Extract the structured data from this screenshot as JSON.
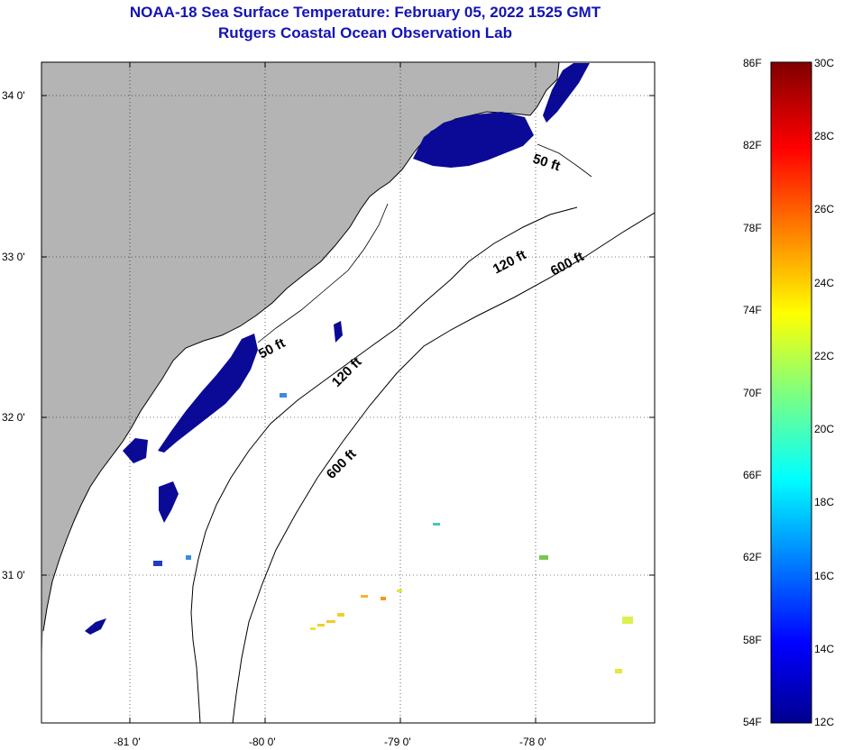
{
  "title": {
    "line1": "NOAA-18 Sea Surface Temperature:  February 05, 2022 1525 GMT",
    "line2": "Rutgers Coastal Ocean Observation Lab"
  },
  "axes": {
    "lat_labels": [
      "34 0'",
      "33 0'",
      "32 0'",
      "31 0'"
    ],
    "lon_labels": [
      "-81 0'",
      "-80 0'",
      "-79 0'",
      "-78 0'"
    ]
  },
  "contours": {
    "fifty": "50 ft",
    "onetwenty": "120 ft",
    "sixhundred": "600 ft"
  },
  "colorbar": {
    "fahrenheit": [
      "86F",
      "82F",
      "78F",
      "74F",
      "70F",
      "66F",
      "62F",
      "58F",
      "54F"
    ],
    "celsius": [
      "30C",
      "28C",
      "26C",
      "24C",
      "22C",
      "20C",
      "18C",
      "16C",
      "14C",
      "12C"
    ]
  },
  "colors": {
    "land": "#b4b4b4",
    "title": "#1414b4",
    "cold_water": "#0a0a96"
  }
}
